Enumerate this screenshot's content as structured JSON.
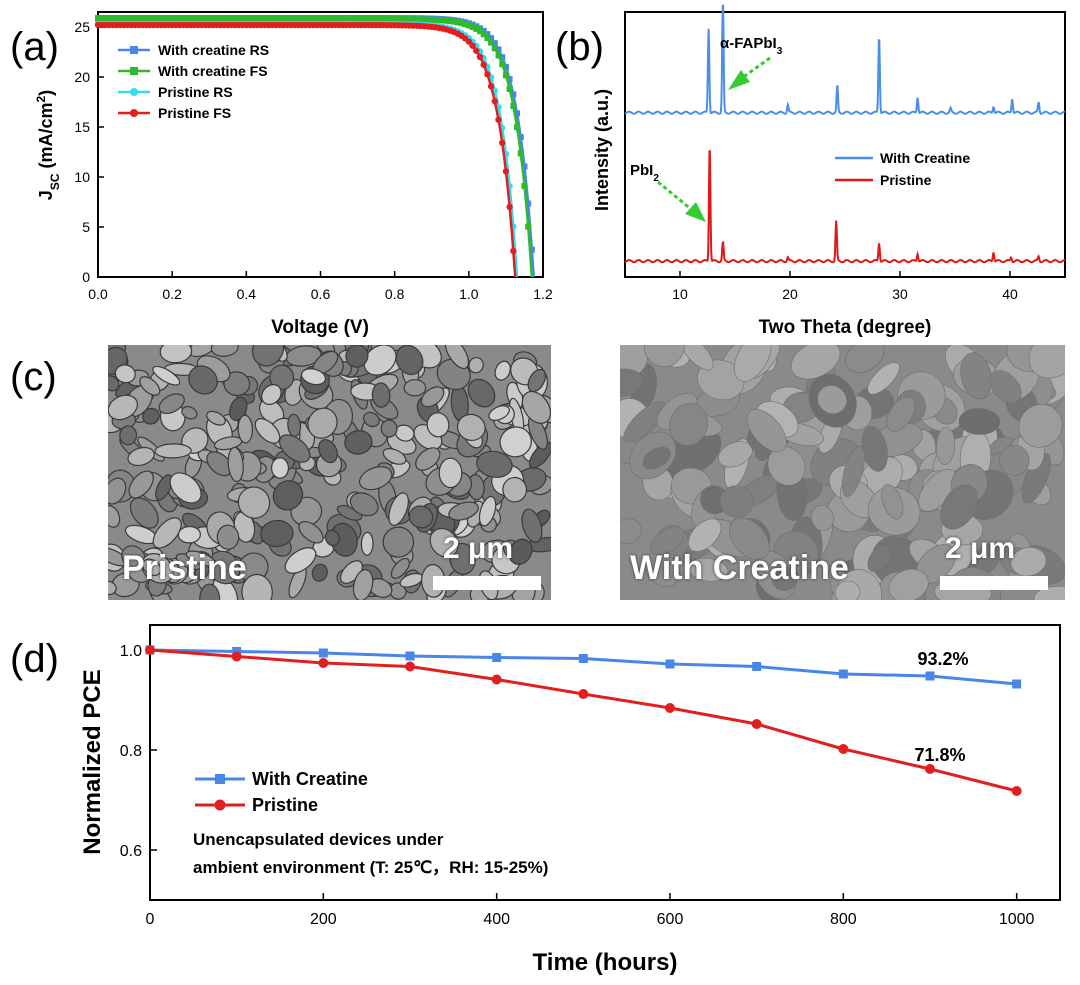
{
  "colors": {
    "blue": "#4a86e8",
    "green": "#2dbb2d",
    "cyan": "#33ddee",
    "red": "#e02020",
    "xrd_blue": "#4a8ee8",
    "xrd_red": "#e01818",
    "arrow_green": "#33cc33",
    "sem_bg": "#8a8a8a"
  },
  "panels": {
    "a": "(a)",
    "b": "(b)",
    "c": "(c)",
    "d": "(d)"
  },
  "sem": {
    "left": {
      "label": "Pristine",
      "scale": "2 μm",
      "icon": "sem-image"
    },
    "right": {
      "label": "With Creatine",
      "scale": "2 μm",
      "icon": "sem-image"
    }
  },
  "chart_data": [
    {
      "id": "a",
      "type": "line",
      "title": "",
      "xlabel": "Voltage (V)",
      "ylabel_main": "J",
      "ylabel_sub": "SC",
      "ylabel_rest": " (mA/cm",
      "ylabel_sup": "2",
      "ylabel_end": ")",
      "xlim": [
        0.0,
        1.2
      ],
      "ylim": [
        0,
        26.5
      ],
      "xticks": [
        "0.0",
        "0.2",
        "0.4",
        "0.6",
        "0.8",
        "1.0",
        "1.2"
      ],
      "xtick_values": [
        0.0,
        0.2,
        0.4,
        0.6,
        0.8,
        1.0,
        1.2
      ],
      "yticks": [
        "0",
        "5",
        "10",
        "15",
        "20",
        "25"
      ],
      "ytick_values": [
        0,
        5,
        10,
        15,
        20,
        25
      ],
      "legend_position": "top-left",
      "series": [
        {
          "name": "With creatine RS",
          "color": "#4a86e8",
          "marker": "square",
          "jsc": 25.9,
          "voc": 1.175,
          "n": 0.045
        },
        {
          "name": "With creatine FS",
          "color": "#2dbb2d",
          "marker": "square",
          "jsc": 25.8,
          "voc": 1.17,
          "n": 0.046
        },
        {
          "name": "Pristine RS",
          "color": "#33ddee",
          "marker": "circle",
          "jsc": 25.3,
          "voc": 1.13,
          "n": 0.045
        },
        {
          "name": "Pristine FS",
          "color": "#e02020",
          "marker": "circle",
          "jsc": 25.2,
          "voc": 1.125,
          "n": 0.046
        }
      ]
    },
    {
      "id": "b",
      "type": "line",
      "xlabel": "Two Theta (degree)",
      "ylabel": "Intensity (a.u.)",
      "xlim": [
        5,
        45
      ],
      "xticks": [
        "10",
        "20",
        "30",
        "40"
      ],
      "xtick_values": [
        10,
        20,
        30,
        40
      ],
      "legend_position": "middle-right",
      "series": [
        {
          "name": "With Creatine",
          "color": "#4a8ee8",
          "offset": 0.62,
          "peaks": [
            [
              12.6,
              0.32
            ],
            [
              13.9,
              0.42
            ],
            [
              19.8,
              0.03
            ],
            [
              24.3,
              0.1
            ],
            [
              28.1,
              0.29
            ],
            [
              31.6,
              0.06
            ],
            [
              34.6,
              0.015
            ],
            [
              38.5,
              0.025
            ],
            [
              40.2,
              0.055
            ],
            [
              42.6,
              0.04
            ]
          ]
        },
        {
          "name": "Pristine",
          "color": "#e01818",
          "offset": 0.06,
          "peaks": [
            [
              12.7,
              0.44
            ],
            [
              13.9,
              0.07
            ],
            [
              19.8,
              0.015
            ],
            [
              24.2,
              0.15
            ],
            [
              28.1,
              0.07
            ],
            [
              31.6,
              0.03
            ],
            [
              38.5,
              0.035
            ],
            [
              40.1,
              0.015
            ],
            [
              42.6,
              0.018
            ]
          ]
        }
      ],
      "annotations": [
        {
          "text": "α-FAPbI",
          "sub": "3"
        },
        {
          "text": "PbI",
          "sub": "2"
        }
      ]
    },
    {
      "id": "d",
      "type": "line",
      "xlabel": "Time (hours)",
      "ylabel": "Normalized PCE",
      "xlim": [
        0,
        1050
      ],
      "ylim": [
        0.5,
        1.05
      ],
      "xticks": [
        "0",
        "200",
        "400",
        "600",
        "800",
        "1000"
      ],
      "xtick_values": [
        0,
        200,
        400,
        600,
        800,
        1000
      ],
      "yticks": [
        "0.6",
        "0.8",
        "1.0"
      ],
      "ytick_values": [
        0.6,
        0.8,
        1.0
      ],
      "legend_position": "bottom-left",
      "x": [
        0,
        100,
        200,
        300,
        400,
        500,
        600,
        700,
        800,
        900,
        1000
      ],
      "series": [
        {
          "name": "With Creatine",
          "color": "#4a86e8",
          "marker": "square",
          "values": [
            1.0,
            0.997,
            0.994,
            0.988,
            0.985,
            0.983,
            0.972,
            0.967,
            0.952,
            0.948,
            0.932
          ]
        },
        {
          "name": "Pristine",
          "color": "#e02020",
          "marker": "circle",
          "values": [
            1.0,
            0.987,
            0.974,
            0.967,
            0.941,
            0.912,
            0.884,
            0.852,
            0.802,
            0.762,
            0.718
          ]
        }
      ],
      "annotations": [
        {
          "text": "93.2%"
        },
        {
          "text": "71.8%"
        },
        {
          "text": "Unencapsulated devices under"
        },
        {
          "text": "ambient environment (T: 25℃，RH: 15-25%)"
        }
      ]
    }
  ]
}
